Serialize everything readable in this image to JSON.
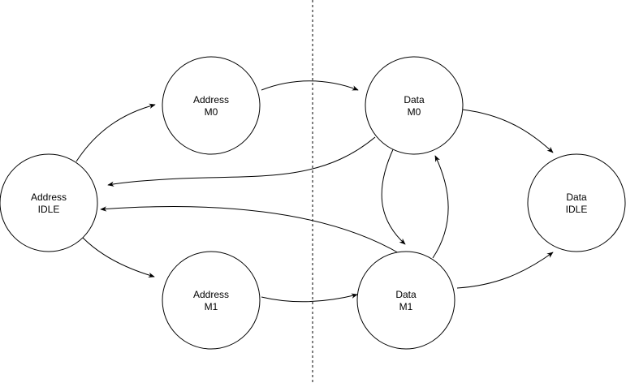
{
  "states": [
    {
      "id": "address-idle",
      "line1": "Address",
      "line2": "IDLE"
    },
    {
      "id": "address-m0",
      "line1": "Address",
      "line2": "M0"
    },
    {
      "id": "address-m1",
      "line1": "Address",
      "line2": "M1"
    },
    {
      "id": "data-m0",
      "line1": "Data",
      "line2": "M0"
    },
    {
      "id": "data-m1",
      "line1": "Data",
      "line2": "M1"
    },
    {
      "id": "data-idle",
      "line1": "Data",
      "line2": "IDLE"
    }
  ],
  "transitions": [
    {
      "from": "address-idle",
      "to": "address-m0"
    },
    {
      "from": "address-idle",
      "to": "address-m1"
    },
    {
      "from": "address-m0",
      "to": "data-m0"
    },
    {
      "from": "address-m1",
      "to": "data-m1"
    },
    {
      "from": "data-m0",
      "to": "data-idle"
    },
    {
      "from": "data-m0",
      "to": "address-idle"
    },
    {
      "from": "data-m0",
      "to": "data-m1"
    },
    {
      "from": "data-m1",
      "to": "data-m0"
    },
    {
      "from": "data-m1",
      "to": "address-idle"
    },
    {
      "from": "data-m1",
      "to": "data-idle"
    }
  ],
  "colors": {
    "stroke": "#000000",
    "fill": "#ffffff"
  }
}
